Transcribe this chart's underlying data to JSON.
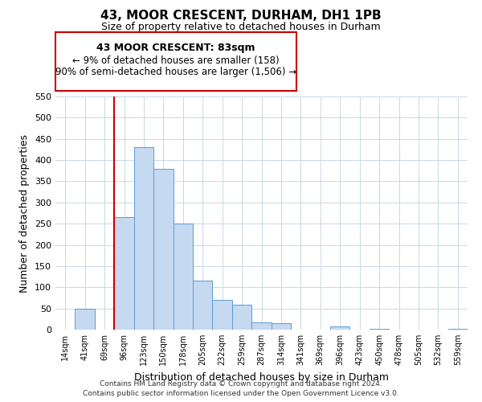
{
  "title": "43, MOOR CRESCENT, DURHAM, DH1 1PB",
  "subtitle": "Size of property relative to detached houses in Durham",
  "xlabel": "Distribution of detached houses by size in Durham",
  "ylabel": "Number of detached properties",
  "bar_labels": [
    "14sqm",
    "41sqm",
    "69sqm",
    "96sqm",
    "123sqm",
    "150sqm",
    "178sqm",
    "205sqm",
    "232sqm",
    "259sqm",
    "287sqm",
    "314sqm",
    "341sqm",
    "369sqm",
    "396sqm",
    "423sqm",
    "450sqm",
    "478sqm",
    "505sqm",
    "532sqm",
    "559sqm"
  ],
  "bar_heights": [
    0,
    50,
    0,
    265,
    430,
    380,
    250,
    115,
    70,
    58,
    18,
    15,
    0,
    0,
    7,
    0,
    2,
    0,
    0,
    0,
    1
  ],
  "bar_color": "#c5d9f0",
  "bar_edge_color": "#5b9bd5",
  "ylim": [
    0,
    550
  ],
  "yticks": [
    0,
    50,
    100,
    150,
    200,
    250,
    300,
    350,
    400,
    450,
    500,
    550
  ],
  "vline_color": "#cc0000",
  "annotation_title": "43 MOOR CRESCENT: 83sqm",
  "annotation_line1": "← 9% of detached houses are smaller (158)",
  "annotation_line2": "90% of semi-detached houses are larger (1,506) →",
  "footer_line1": "Contains HM Land Registry data © Crown copyright and database right 2024.",
  "footer_line2": "Contains public sector information licensed under the Open Government Licence v3.0.",
  "background_color": "#ffffff",
  "grid_color": "#c8d8e8"
}
